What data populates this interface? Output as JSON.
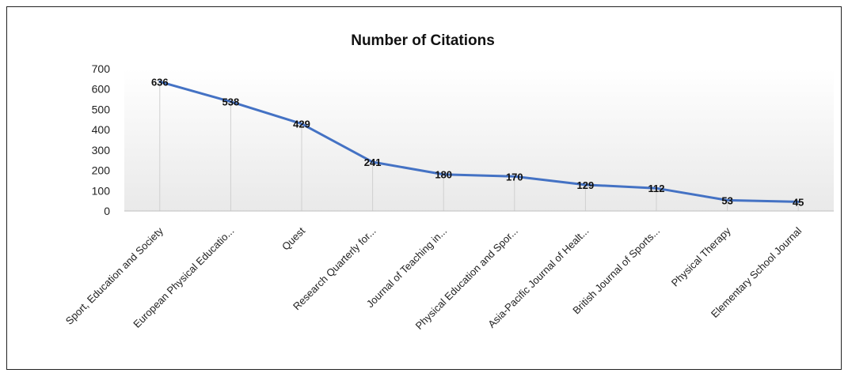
{
  "chart_data": {
    "type": "line",
    "title": "Number of Citations",
    "xlabel": "",
    "ylabel": "",
    "ylim": [
      0,
      700
    ],
    "yticks": [
      0,
      100,
      200,
      300,
      400,
      500,
      600,
      700
    ],
    "grid": false,
    "legend": "none",
    "categories": [
      "Sport, Education and Society",
      "European Physical Educatio...",
      "Quest",
      "Research Quarterly for...",
      "Journal of Teaching in...",
      "Physical Education and Spor...",
      "Asia-Pacific Journal of Healt...",
      "British Journal of Sports...",
      "Physical Therapy",
      "Elementary School Journal"
    ],
    "series": [
      {
        "values": [
          636,
          538,
          429,
          241,
          180,
          170,
          129,
          112,
          53,
          45
        ],
        "color": "#4472C4"
      }
    ],
    "data_labels": [
      "636",
      "538",
      "429",
      "241",
      "180",
      "170",
      "129",
      "112",
      "53",
      "45"
    ]
  }
}
